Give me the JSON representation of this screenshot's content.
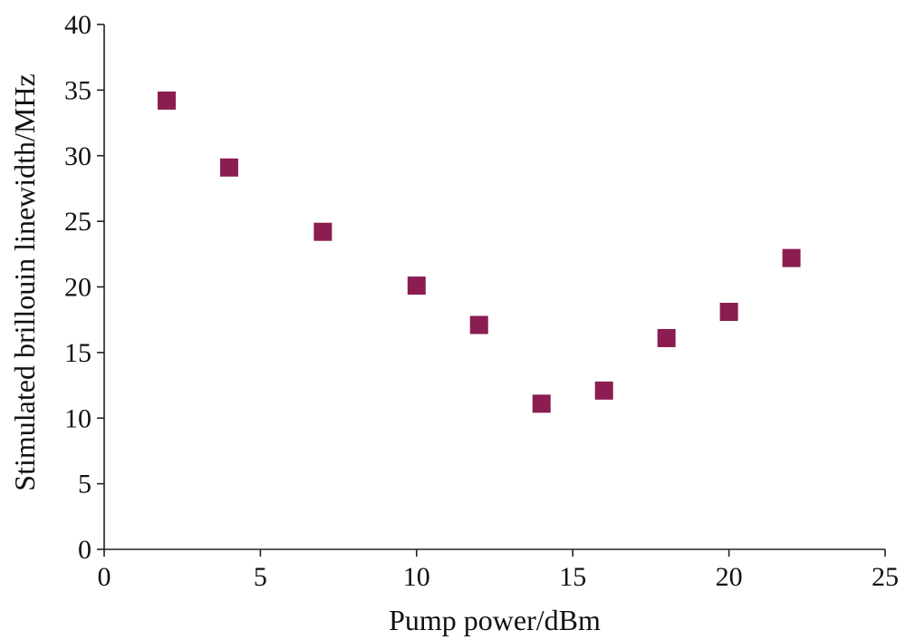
{
  "chart_data": {
    "type": "scatter",
    "xlabel": "Pump power/dBm",
    "ylabel": "Stimulated brillouin linewidth/MHz",
    "xlim": [
      0,
      25
    ],
    "ylim": [
      0,
      40
    ],
    "xticks": [
      "0",
      "5",
      "10",
      "15",
      "20",
      "25"
    ],
    "yticks": [
      "0",
      "5",
      "10",
      "15",
      "20",
      "25",
      "30",
      "35",
      "40"
    ],
    "grid": false,
    "marker": "square",
    "marker_color": "#8B1D52",
    "series": [
      {
        "x": [
          2,
          4,
          7,
          10,
          12,
          14,
          16,
          18,
          20,
          22
        ],
        "y": [
          34.2,
          29.1,
          24.2,
          20.1,
          17.1,
          11.1,
          12.1,
          16.1,
          18.1,
          22.2
        ]
      }
    ]
  }
}
